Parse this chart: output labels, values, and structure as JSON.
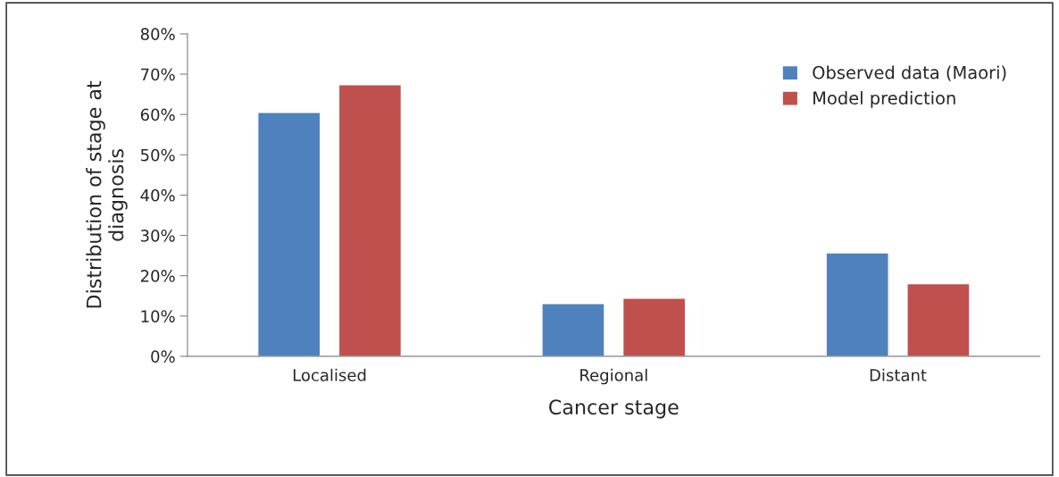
{
  "chart_data": {
    "type": "bar",
    "xlabel": "Cancer stage",
    "ylabel": "Distribution of stage at\ndiagnosis",
    "categories": [
      "Localised",
      "Regional",
      "Distant"
    ],
    "series": [
      {
        "name": "Observed data (Maori)",
        "color": "#4f81bd",
        "values": [
          60.5,
          13.1,
          25.7
        ]
      },
      {
        "name": "Model prediction",
        "color": "#c0504d",
        "values": [
          67.4,
          14.4,
          18.0
        ]
      }
    ],
    "ylim": [
      0,
      80
    ],
    "yticks": [
      {
        "value": 0,
        "label": "0%"
      },
      {
        "value": 10,
        "label": "10%"
      },
      {
        "value": 20,
        "label": "20%"
      },
      {
        "value": 30,
        "label": "30%"
      },
      {
        "value": 40,
        "label": "40%"
      },
      {
        "value": 50,
        "label": "50%"
      },
      {
        "value": 60,
        "label": "60%"
      },
      {
        "value": 70,
        "label": "70%"
      },
      {
        "value": 80,
        "label": "80%"
      }
    ],
    "grid": false,
    "legend": "top right"
  }
}
